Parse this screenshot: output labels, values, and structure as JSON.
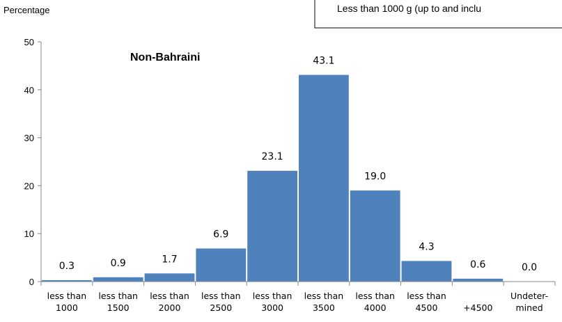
{
  "chart_data": {
    "type": "bar",
    "ylabel": "Percentage",
    "panel_title": "Non-Bahraini",
    "note": "Less than 1000 g (up to and inclu",
    "ylim": [
      0,
      50
    ],
    "yticks": [
      0,
      10,
      20,
      30,
      40,
      50
    ],
    "categories": [
      [
        "less than",
        "1000"
      ],
      [
        "less than",
        "1500"
      ],
      [
        "less than",
        "2000"
      ],
      [
        "less than",
        "2500"
      ],
      [
        "less than",
        "3000"
      ],
      [
        "less than",
        "3500"
      ],
      [
        "less than",
        "4000"
      ],
      [
        "less than",
        "4500"
      ],
      [
        "+4500"
      ],
      [
        "Undeter-",
        "mined"
      ]
    ],
    "values": [
      0.3,
      0.9,
      1.7,
      6.9,
      23.1,
      43.1,
      19.0,
      4.3,
      0.6,
      0.0
    ],
    "value_labels": [
      "0.3",
      "0.9",
      "1.7",
      "6.9",
      "23.1",
      "43.1",
      "19.0",
      "4.3",
      "0.6",
      "0.0"
    ],
    "bar_color": "#4f81bd",
    "grid": false
  }
}
